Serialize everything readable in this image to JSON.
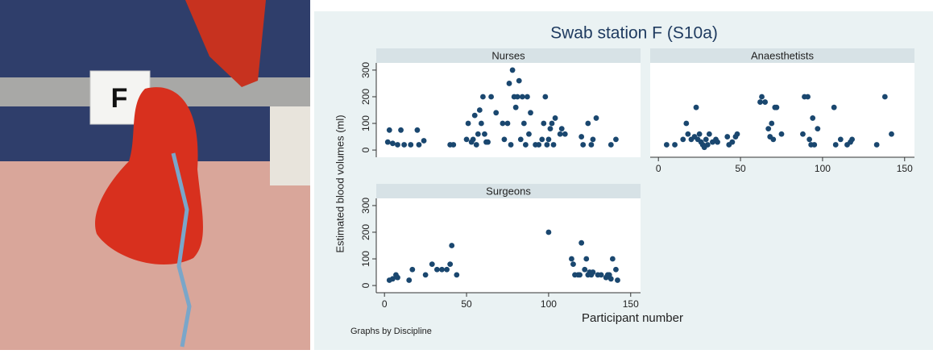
{
  "photo_label": "F",
  "title": "Swab station F (S10a)",
  "y_label": "Estimated blood volumes (ml)",
  "x_label": "Participant number",
  "note": "Graphs by Discipline",
  "chart_data": [
    {
      "type": "scatter",
      "title": "Nurses",
      "color": "#1a476f",
      "xlim": [
        -5,
        156
      ],
      "ylim": [
        -27,
        327
      ],
      "yticks": [
        0,
        100,
        200,
        300
      ],
      "x": [
        2,
        3,
        5,
        8,
        10,
        12,
        16,
        20,
        21,
        24,
        40,
        42,
        50,
        51,
        53,
        54,
        55,
        56,
        57,
        58,
        59,
        60,
        61,
        62,
        63,
        65,
        68,
        72,
        73,
        75,
        76,
        77,
        78,
        79,
        80,
        81,
        82,
        83,
        84,
        85,
        86,
        87,
        88,
        89,
        92,
        94,
        96,
        97,
        98,
        99,
        100,
        101,
        102,
        103,
        104,
        107,
        108,
        110,
        120,
        121,
        124,
        126,
        127,
        129,
        138,
        141
      ],
      "values": [
        30,
        75,
        25,
        20,
        75,
        20,
        20,
        75,
        20,
        35,
        20,
        20,
        40,
        100,
        30,
        40,
        130,
        20,
        60,
        150,
        100,
        200,
        60,
        30,
        30,
        200,
        140,
        100,
        40,
        100,
        250,
        20,
        300,
        200,
        160,
        200,
        260,
        40,
        200,
        100,
        20,
        200,
        60,
        140,
        20,
        20,
        40,
        100,
        200,
        20,
        40,
        80,
        100,
        20,
        120,
        60,
        80,
        60,
        50,
        20,
        100,
        20,
        40,
        120,
        20,
        40
      ]
    },
    {
      "type": "scatter",
      "title": "Anaesthetists",
      "color": "#1a476f",
      "xlim": [
        -5,
        156
      ],
      "ylim": [
        -27,
        327
      ],
      "xticks": [
        0,
        50,
        100,
        150
      ],
      "x": [
        5,
        10,
        15,
        17,
        18,
        20,
        22,
        23,
        24,
        25,
        26,
        27,
        28,
        29,
        30,
        31,
        33,
        35,
        36,
        42,
        43,
        45,
        47,
        48,
        62,
        63,
        65,
        67,
        68,
        69,
        70,
        71,
        72,
        75,
        88,
        89,
        91,
        92,
        93,
        94,
        95,
        97,
        107,
        108,
        111,
        115,
        117,
        118,
        133,
        138,
        142
      ],
      "values": [
        20,
        20,
        40,
        100,
        60,
        40,
        50,
        160,
        40,
        60,
        30,
        20,
        10,
        40,
        20,
        60,
        30,
        40,
        30,
        50,
        20,
        30,
        50,
        60,
        180,
        200,
        180,
        80,
        50,
        100,
        40,
        160,
        160,
        60,
        60,
        200,
        200,
        40,
        20,
        120,
        20,
        80,
        160,
        20,
        40,
        20,
        30,
        40,
        20,
        200,
        60
      ]
    },
    {
      "type": "scatter",
      "title": "Surgeons",
      "color": "#1a476f",
      "xlim": [
        -5,
        156
      ],
      "ylim": [
        -27,
        327
      ],
      "xticks": [
        0,
        50,
        100,
        150
      ],
      "yticks": [
        0,
        100,
        200,
        300
      ],
      "x": [
        3,
        5,
        7,
        8,
        15,
        17,
        25,
        29,
        32,
        35,
        38,
        40,
        41,
        44,
        100,
        114,
        115,
        116,
        118,
        119,
        120,
        122,
        123,
        124,
        125,
        126,
        127,
        130,
        132,
        135,
        136,
        137,
        138,
        139,
        141,
        142
      ],
      "values": [
        20,
        25,
        40,
        30,
        20,
        60,
        40,
        80,
        60,
        60,
        60,
        80,
        150,
        40,
        200,
        100,
        80,
        40,
        40,
        40,
        160,
        60,
        100,
        40,
        50,
        40,
        50,
        40,
        40,
        30,
        40,
        40,
        25,
        100,
        60,
        20
      ]
    }
  ]
}
